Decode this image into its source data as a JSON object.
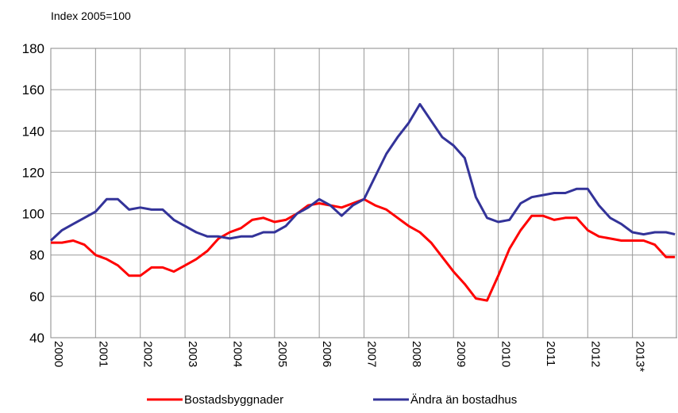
{
  "chart_data": {
    "type": "line",
    "title": "Index  2005=100",
    "x": [
      2000,
      2000.25,
      2000.5,
      2000.75,
      2001,
      2001.25,
      2001.5,
      2001.75,
      2002,
      2002.25,
      2002.5,
      2002.75,
      2003,
      2003.25,
      2003.5,
      2003.75,
      2004,
      2004.25,
      2004.5,
      2004.75,
      2005,
      2005.25,
      2005.5,
      2005.75,
      2006,
      2006.25,
      2006.5,
      2006.75,
      2007,
      2007.25,
      2007.5,
      2007.75,
      2008,
      2008.25,
      2008.5,
      2008.75,
      2009,
      2009.25,
      2009.5,
      2009.75,
      2010,
      2010.25,
      2010.5,
      2010.75,
      2011,
      2011.25,
      2011.5,
      2011.75,
      2012,
      2012.25,
      2012.5,
      2012.75,
      2013,
      2013.25,
      2013.5,
      2013.75,
      2013.95
    ],
    "series": [
      {
        "name": "Bostadsbyggnader",
        "color": "#ff0000",
        "values": [
          86,
          86,
          87,
          85,
          80,
          78,
          75,
          70,
          70,
          74,
          74,
          72,
          75,
          78,
          82,
          88,
          91,
          93,
          97,
          98,
          96,
          97,
          100,
          104,
          105,
          104,
          103,
          105,
          107,
          104,
          102,
          98,
          94,
          91,
          86,
          79,
          72,
          66,
          59,
          58,
          70,
          83,
          92,
          99,
          99,
          97,
          98,
          98,
          92,
          89,
          88,
          87,
          87,
          87,
          85,
          79,
          79
        ]
      },
      {
        "name": "Ändra än bostadhus",
        "color": "#333399",
        "values": [
          87,
          92,
          95,
          98,
          101,
          107,
          107,
          102,
          103,
          102,
          102,
          97,
          94,
          91,
          89,
          89,
          88,
          89,
          89,
          91,
          91,
          94,
          100,
          103,
          107,
          104,
          99,
          104,
          107,
          118,
          129,
          137,
          144,
          153,
          145,
          137,
          133,
          127,
          108,
          98,
          96,
          97,
          105,
          108,
          109,
          110,
          110,
          112,
          112,
          104,
          98,
          95,
          91,
          90,
          91,
          91,
          90
        ]
      }
    ],
    "xlim": [
      2000,
      2014
    ],
    "xticks": [
      2000,
      2001,
      2002,
      2003,
      2004,
      2005,
      2006,
      2007,
      2008,
      2009,
      2010,
      2011,
      2012,
      {
        "value": 2013,
        "label": "2013*"
      }
    ],
    "ylim": [
      40,
      180
    ],
    "yticks": [
      40,
      60,
      80,
      100,
      120,
      140,
      160,
      180
    ],
    "grid": true
  }
}
